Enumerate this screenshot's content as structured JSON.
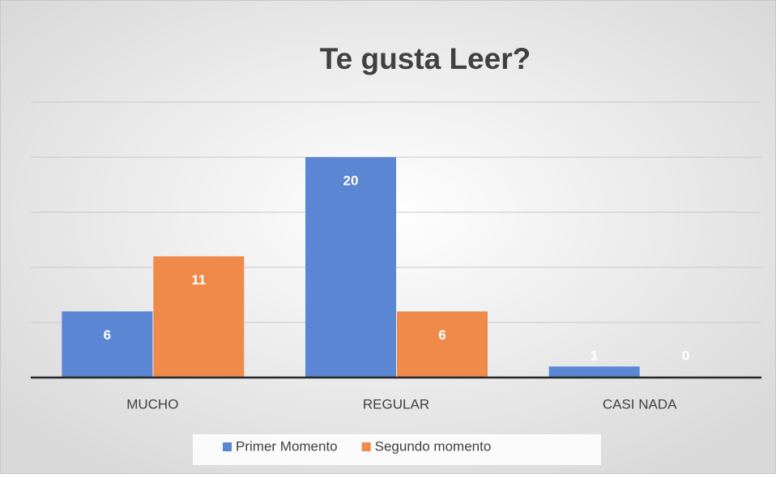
{
  "chart_data": {
    "type": "bar",
    "title": "Te  gusta Leer?",
    "categories": [
      "MUCHO",
      "REGULAR",
      "CASI NADA"
    ],
    "series": [
      {
        "name": "Primer Momento",
        "color": "#5a86d3",
        "values": [
          6,
          20,
          1
        ]
      },
      {
        "name": "Segundo momento",
        "color": "#f08a4b",
        "values": [
          11,
          6,
          0
        ]
      }
    ],
    "ylim": [
      0,
      25
    ],
    "yticks": [
      0,
      5,
      10,
      15,
      20,
      25
    ],
    "grid": true,
    "legend": "bottom"
  }
}
